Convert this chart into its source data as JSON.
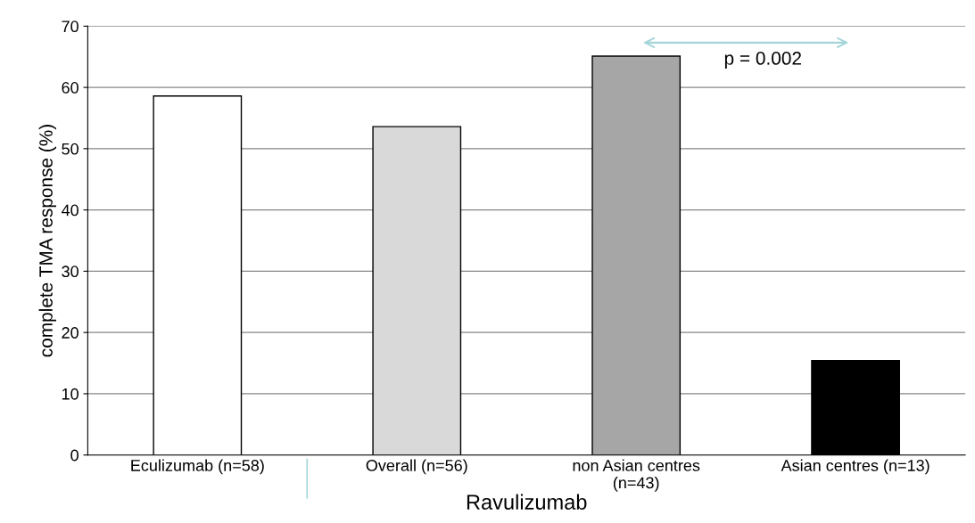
{
  "chart_data": {
    "type": "bar",
    "ylabel": "complete TMA response (%)",
    "xlabel": "Ravulizumab",
    "categories": [
      "Eculizumab (n=58)",
      "Overall (n=56)",
      "non Asian centres\n(n=43)",
      "Asian centres (n=13)"
    ],
    "values": [
      58.6,
      53.6,
      65.1,
      15.4
    ],
    "colors": [
      "#ffffff",
      "#d9d9d9",
      "#a6a6a6",
      "#000000"
    ],
    "ylim": [
      0,
      70
    ],
    "yticks": [
      0,
      10,
      20,
      30,
      40,
      50,
      60,
      70
    ],
    "grid": "y",
    "annotations": [
      "p = 0.002"
    ]
  }
}
